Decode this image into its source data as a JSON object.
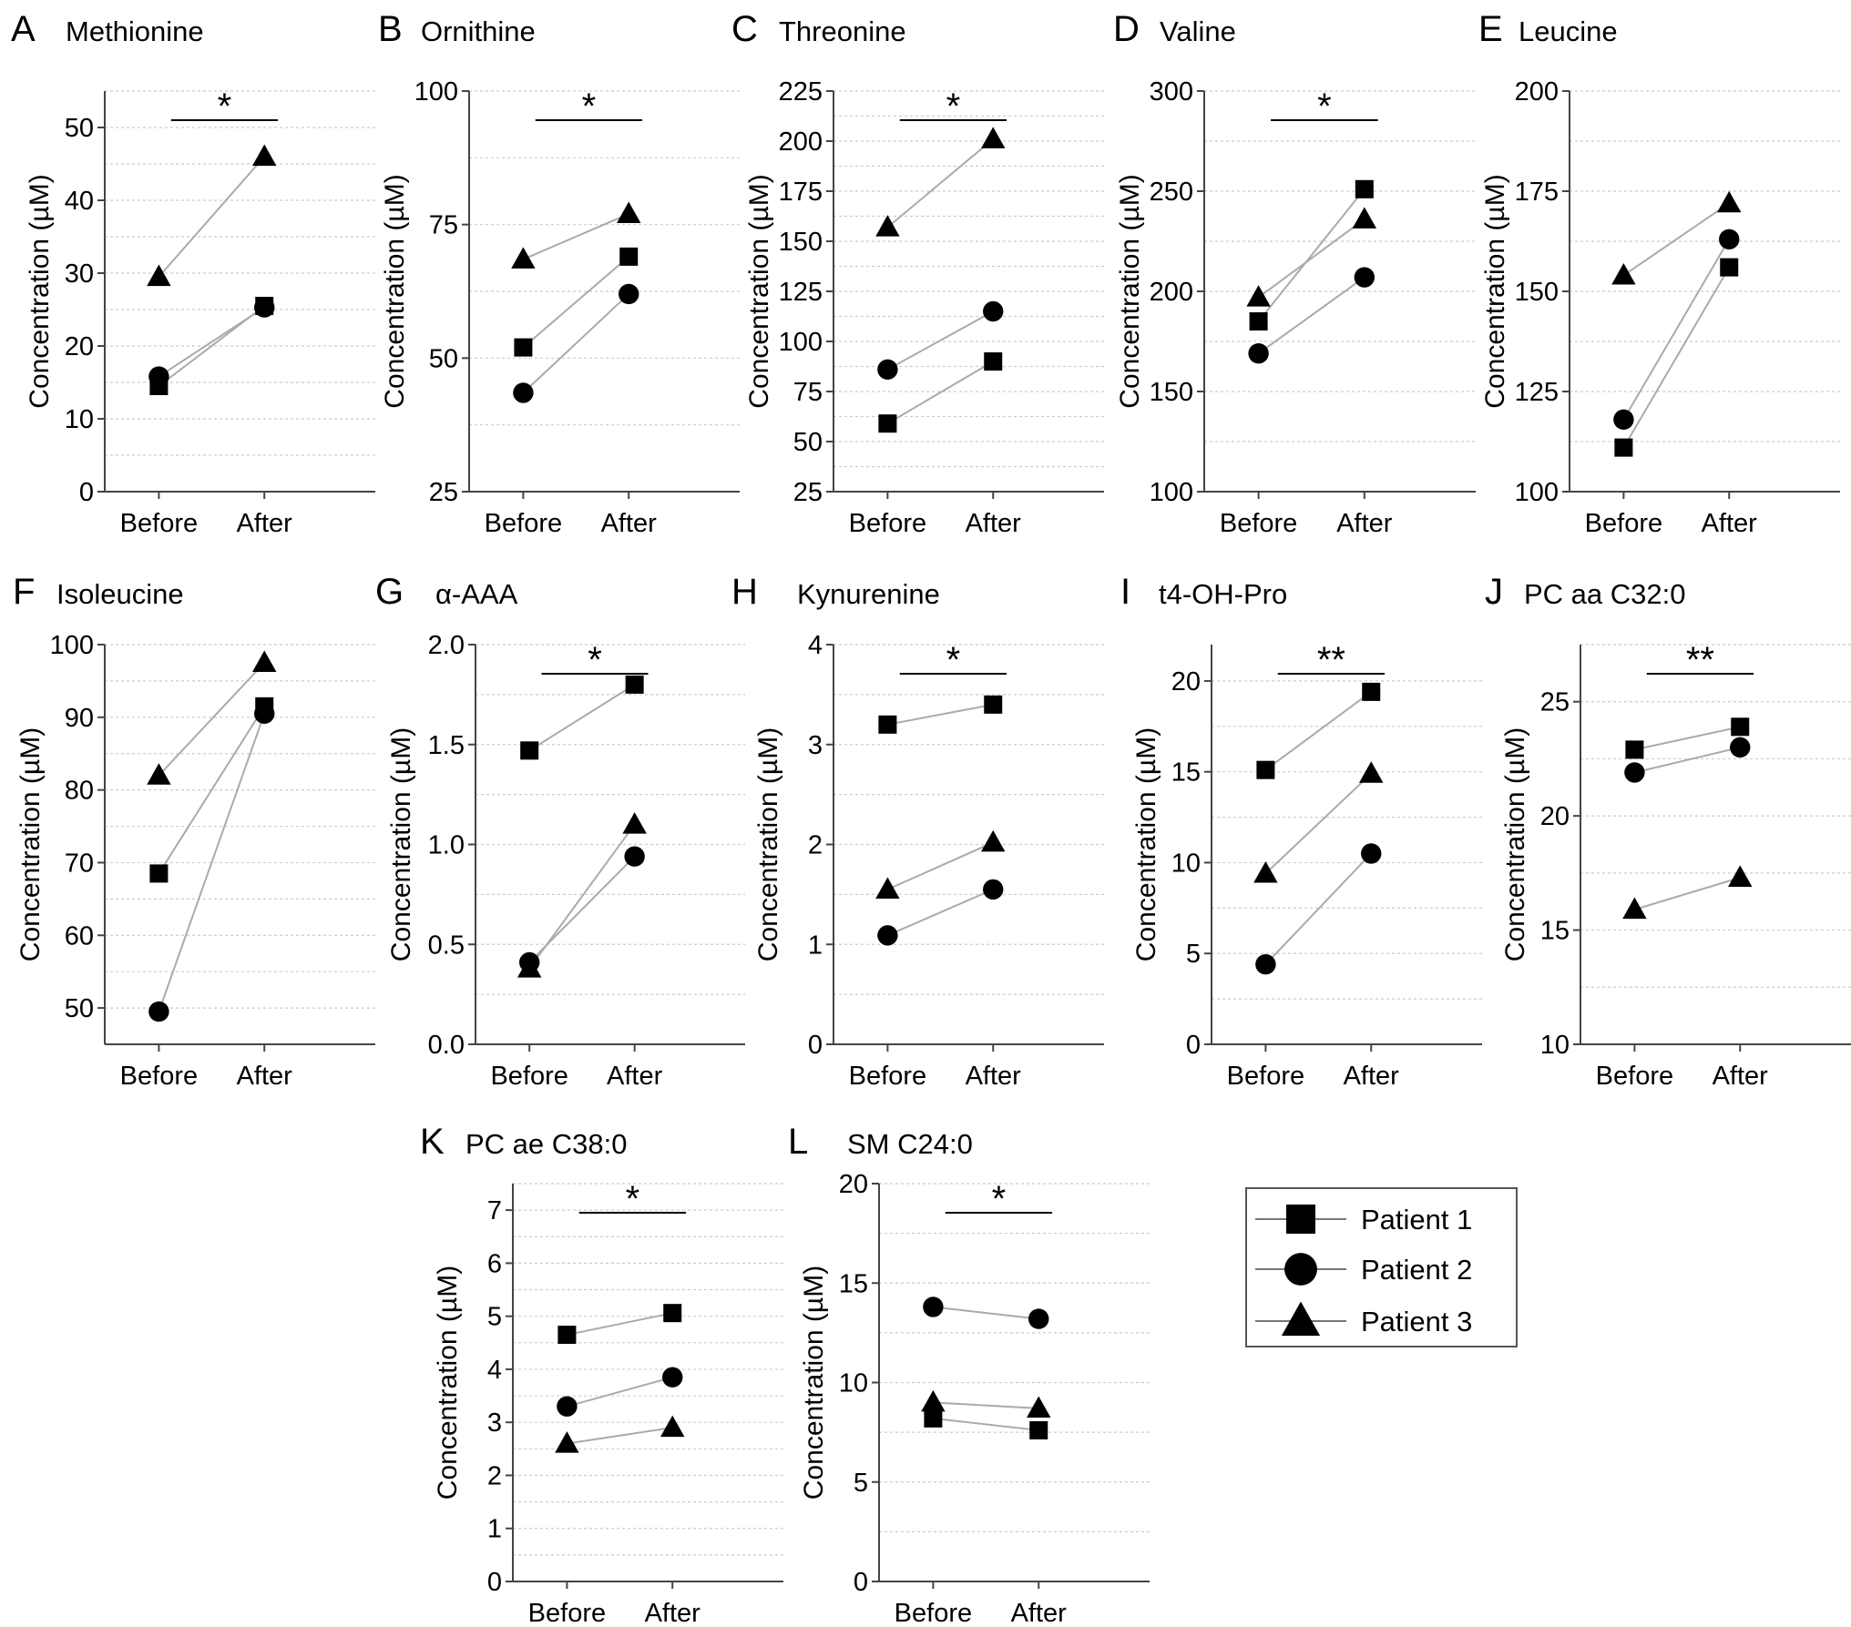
{
  "figure": {
    "legend": [
      {
        "label": "Patient 1",
        "marker": "square-icon"
      },
      {
        "label": "Patient 2",
        "marker": "circle-icon"
      },
      {
        "label": "Patient 3",
        "marker": "triangle-icon"
      }
    ],
    "colors": {
      "marker": "#000000",
      "line": "#aaaaaa",
      "grid": "#cccccc",
      "axis": "#444444"
    }
  },
  "chart_data": [
    {
      "type": "line",
      "letter": "A",
      "title": "Methionine",
      "ylabel": "Concentration (µM)",
      "categories": [
        "Before",
        "After"
      ],
      "ylim": [
        0,
        55
      ],
      "yticks": [
        0,
        10,
        20,
        30,
        40,
        50
      ],
      "significance": "*",
      "series": [
        {
          "name": "Patient 1",
          "marker": "square",
          "values": [
            14.5,
            25.5
          ]
        },
        {
          "name": "Patient 2",
          "marker": "circle",
          "values": [
            15.8,
            25.3
          ]
        },
        {
          "name": "Patient 3",
          "marker": "triangle",
          "values": [
            29.5,
            46.0
          ]
        }
      ]
    },
    {
      "type": "line",
      "letter": "B",
      "title": "Ornithine",
      "ylabel": "Concentration (µM)",
      "categories": [
        "Before",
        "After"
      ],
      "ylim": [
        25,
        100
      ],
      "yticks": [
        25,
        50,
        75,
        100
      ],
      "significance": "*",
      "series": [
        {
          "name": "Patient 1",
          "marker": "square",
          "values": [
            52.0,
            69.0
          ]
        },
        {
          "name": "Patient 2",
          "marker": "circle",
          "values": [
            43.5,
            62.0
          ]
        },
        {
          "name": "Patient 3",
          "marker": "triangle",
          "values": [
            68.5,
            77.0
          ]
        }
      ]
    },
    {
      "type": "line",
      "letter": "C",
      "title": "Threonine",
      "ylabel": "Concentration (µM)",
      "categories": [
        "Before",
        "After"
      ],
      "ylim": [
        25,
        225
      ],
      "yticks": [
        25,
        50,
        75,
        100,
        125,
        150,
        175,
        200,
        225
      ],
      "significance": "*",
      "series": [
        {
          "name": "Patient 1",
          "marker": "square",
          "values": [
            59,
            90
          ]
        },
        {
          "name": "Patient 2",
          "marker": "circle",
          "values": [
            86,
            115
          ]
        },
        {
          "name": "Patient 3",
          "marker": "triangle",
          "values": [
            157,
            201
          ]
        }
      ]
    },
    {
      "type": "line",
      "letter": "D",
      "title": "Valine",
      "ylabel": "Concentration (µM)",
      "categories": [
        "Before",
        "After"
      ],
      "ylim": [
        100,
        300
      ],
      "yticks": [
        100,
        150,
        200,
        250,
        300
      ],
      "significance": "*",
      "series": [
        {
          "name": "Patient 1",
          "marker": "square",
          "values": [
            185,
            251
          ]
        },
        {
          "name": "Patient 2",
          "marker": "circle",
          "values": [
            169,
            207
          ]
        },
        {
          "name": "Patient 3",
          "marker": "triangle",
          "values": [
            197,
            236
          ]
        }
      ]
    },
    {
      "type": "line",
      "letter": "E",
      "title": "Leucine",
      "ylabel": "Concentration (µM)",
      "categories": [
        "Before",
        "After"
      ],
      "ylim": [
        100,
        200
      ],
      "yticks": [
        100,
        125,
        150,
        175,
        200
      ],
      "significance": "",
      "series": [
        {
          "name": "Patient 1",
          "marker": "square",
          "values": [
            111,
            156
          ]
        },
        {
          "name": "Patient 2",
          "marker": "circle",
          "values": [
            118,
            163
          ]
        },
        {
          "name": "Patient 3",
          "marker": "triangle",
          "values": [
            154,
            172
          ]
        }
      ]
    },
    {
      "type": "line",
      "letter": "F",
      "title": "Isoleucine",
      "ylabel": "Concentration (µM)",
      "categories": [
        "Before",
        "After"
      ],
      "ylim": [
        45,
        100
      ],
      "yticks": [
        50,
        60,
        70,
        80,
        90,
        100
      ],
      "significance": "",
      "series": [
        {
          "name": "Patient 1",
          "marker": "square",
          "values": [
            68.5,
            91.5
          ]
        },
        {
          "name": "Patient 2",
          "marker": "circle",
          "values": [
            49.5,
            90.5
          ]
        },
        {
          "name": "Patient 3",
          "marker": "triangle",
          "values": [
            82.0,
            97.5
          ]
        }
      ]
    },
    {
      "type": "line",
      "letter": "G",
      "title": "α-AAA",
      "ylabel": "Concentration (µM)",
      "categories": [
        "Before",
        "After"
      ],
      "ylim": [
        0,
        2.0
      ],
      "yticks": [
        "0.0",
        "0.5",
        "1.0",
        "1.5",
        "2.0"
      ],
      "significance": "*",
      "series": [
        {
          "name": "Patient 1",
          "marker": "square",
          "values": [
            1.47,
            1.8
          ]
        },
        {
          "name": "Patient 2",
          "marker": "circle",
          "values": [
            0.41,
            0.94
          ]
        },
        {
          "name": "Patient 3",
          "marker": "triangle",
          "values": [
            0.38,
            1.1
          ]
        }
      ]
    },
    {
      "type": "line",
      "letter": "H",
      "title": "Kynurenine",
      "ylabel": "Concentration (µM)",
      "categories": [
        "Before",
        "After"
      ],
      "ylim": [
        0,
        4
      ],
      "yticks": [
        0,
        1,
        2,
        3,
        4
      ],
      "significance": "*",
      "series": [
        {
          "name": "Patient 1",
          "marker": "square",
          "values": [
            3.2,
            3.4
          ]
        },
        {
          "name": "Patient 2",
          "marker": "circle",
          "values": [
            1.09,
            1.55
          ]
        },
        {
          "name": "Patient 3",
          "marker": "triangle",
          "values": [
            1.55,
            2.02
          ]
        }
      ]
    },
    {
      "type": "line",
      "letter": "I",
      "title": "t4-OH-Pro",
      "ylabel": "Concentration (µM)",
      "categories": [
        "Before",
        "After"
      ],
      "ylim": [
        0,
        22
      ],
      "yticks": [
        0,
        5,
        10,
        15,
        20
      ],
      "significance": "**",
      "series": [
        {
          "name": "Patient 1",
          "marker": "square",
          "values": [
            15.1,
            19.4
          ]
        },
        {
          "name": "Patient 2",
          "marker": "circle",
          "values": [
            4.4,
            10.5
          ]
        },
        {
          "name": "Patient 3",
          "marker": "triangle",
          "values": [
            9.4,
            14.9
          ]
        }
      ]
    },
    {
      "type": "line",
      "letter": "J",
      "title": "PC aa C32:0",
      "ylabel": "Concentration (µM)",
      "categories": [
        "Before",
        "After"
      ],
      "ylim": [
        10,
        27.5
      ],
      "yticks": [
        10,
        15,
        20,
        25
      ],
      "significance": "**",
      "series": [
        {
          "name": "Patient 1",
          "marker": "square",
          "values": [
            22.9,
            23.9
          ]
        },
        {
          "name": "Patient 2",
          "marker": "circle",
          "values": [
            21.9,
            23.0
          ]
        },
        {
          "name": "Patient 3",
          "marker": "triangle",
          "values": [
            15.9,
            17.3
          ]
        }
      ]
    },
    {
      "type": "line",
      "letter": "K",
      "title": "PC ae C38:0",
      "ylabel": "Concentration (µM)",
      "categories": [
        "Before",
        "After"
      ],
      "ylim": [
        0,
        7.5
      ],
      "yticks": [
        0,
        1,
        2,
        3,
        4,
        5,
        6,
        7
      ],
      "significance": "*",
      "series": [
        {
          "name": "Patient 1",
          "marker": "square",
          "values": [
            4.65,
            5.06
          ]
        },
        {
          "name": "Patient 2",
          "marker": "circle",
          "values": [
            3.3,
            3.85
          ]
        },
        {
          "name": "Patient 3",
          "marker": "triangle",
          "values": [
            2.6,
            2.9
          ]
        }
      ]
    },
    {
      "type": "line",
      "letter": "L",
      "title": "SM C24:0",
      "ylabel": "Concentration (µM)",
      "categories": [
        "Before",
        "After"
      ],
      "ylim": [
        0,
        20
      ],
      "yticks": [
        0,
        5,
        10,
        15,
        20
      ],
      "significance": "*",
      "series": [
        {
          "name": "Patient 1",
          "marker": "square",
          "values": [
            8.2,
            7.6
          ]
        },
        {
          "name": "Patient 2",
          "marker": "circle",
          "values": [
            13.8,
            13.2
          ]
        },
        {
          "name": "Patient 3",
          "marker": "triangle",
          "values": [
            9.0,
            8.7
          ]
        }
      ]
    }
  ]
}
